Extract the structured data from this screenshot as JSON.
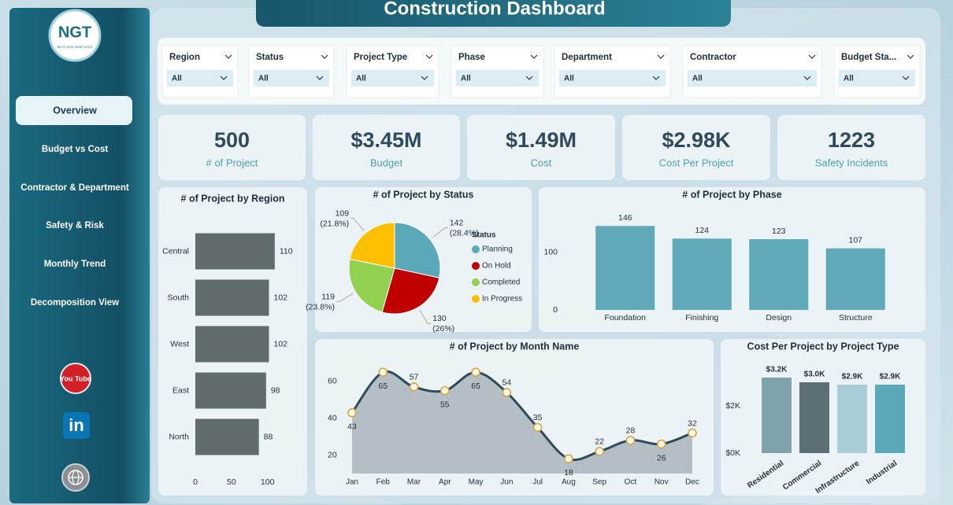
{
  "sidebar": {
    "logo": "NGT",
    "logo_sub": "NEXT GEN TEMPLATES",
    "nav": [
      "Overview",
      "Budget vs Cost",
      "Contractor & Department",
      "Safety & Risk",
      "Monthly Trend",
      "Decomposition View"
    ],
    "social": {
      "youtube": "You Tube",
      "linkedin": "in"
    }
  },
  "header": {
    "title": "Construction Dashboard"
  },
  "filters": [
    {
      "label": "Region",
      "value": "All"
    },
    {
      "label": "Status",
      "value": "All"
    },
    {
      "label": "Project Type",
      "value": "All"
    },
    {
      "label": "Phase",
      "value": "All"
    },
    {
      "label": "Department",
      "value": "All"
    },
    {
      "label": "Contractor",
      "value": "All"
    },
    {
      "label": "Budget Sta...",
      "value": "All"
    }
  ],
  "kpis": [
    {
      "value": "500",
      "label": "# of Project"
    },
    {
      "value": "$3.45M",
      "label": "Budget"
    },
    {
      "value": "$1.49M",
      "label": "Cost"
    },
    {
      "value": "$2.98K",
      "label": "Cost Per Project"
    },
    {
      "value": "1223",
      "label": "Safety Incidents"
    }
  ],
  "chart_data": [
    {
      "type": "hbar",
      "title": "# of Project by Region",
      "categories": [
        "Central",
        "South",
        "West",
        "East",
        "North"
      ],
      "values": [
        110,
        102,
        102,
        98,
        88
      ],
      "color": "#5f6b6d",
      "xlim": [
        0,
        120
      ],
      "xticks": [
        0,
        50,
        100
      ]
    },
    {
      "type": "pie",
      "title": "# of Project by Status",
      "legend_title": "Status",
      "categories": [
        "Planning",
        "On Hold",
        "Completed",
        "In Progress"
      ],
      "values": [
        142,
        130,
        119,
        109
      ],
      "percent_labels": [
        "(28.4%)",
        "(26%)",
        "(23.8%)",
        "(21.8%)"
      ],
      "colors": [
        "#5ba8b8",
        "#c00000",
        "#92d050",
        "#ffc000"
      ]
    },
    {
      "type": "bar",
      "title": "# of Project by Phase",
      "categories": [
        "Foundation",
        "Finishing",
        "Design",
        "Structure"
      ],
      "values": [
        146,
        124,
        123,
        107
      ],
      "color": "#5fa9b9",
      "ylim": [
        0,
        160
      ],
      "yticks": [
        0,
        100
      ]
    },
    {
      "type": "area",
      "title": "# of Project by Month Name",
      "categories": [
        "Jan",
        "Feb",
        "Mar",
        "Apr",
        "May",
        "Jun",
        "Jul",
        "Aug",
        "Sep",
        "Oct",
        "Nov",
        "Dec"
      ],
      "values": [
        43,
        65,
        57,
        55,
        65,
        54,
        35,
        18,
        22,
        28,
        26,
        32
      ],
      "line_color": "#2f4a5c",
      "fill_color": "#a9b5bc",
      "marker_color": "#d9a441",
      "ylim": [
        10,
        70
      ],
      "yticks": [
        20,
        40,
        60
      ]
    },
    {
      "type": "bar",
      "title": "Cost Per Project by Project Type",
      "categories": [
        "Residential",
        "Commercial",
        "Infrastructure",
        "Industrial"
      ],
      "values": [
        3200,
        3000,
        2900,
        2900
      ],
      "value_labels": [
        "$3.2K",
        "$3.0K",
        "$2.9K",
        "$2.9K"
      ],
      "colors": [
        "#7fa3ab",
        "#5b6f73",
        "#a9cdd6",
        "#5ba8b8"
      ],
      "ylim": [
        0,
        4000
      ],
      "yticks": [
        {
          "value": 0,
          "label": "$0K"
        },
        {
          "value": 2000,
          "label": "$2K"
        }
      ]
    }
  ]
}
